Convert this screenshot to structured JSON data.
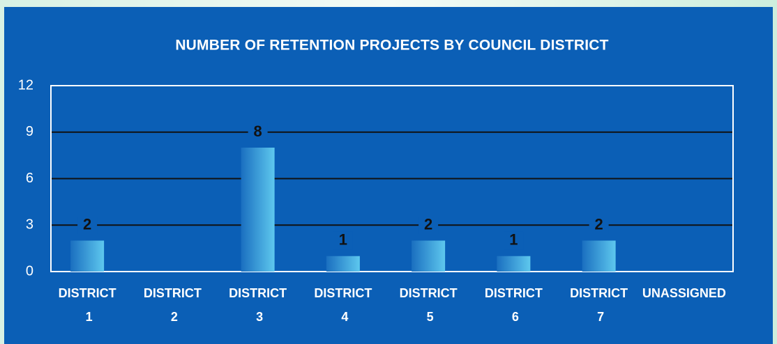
{
  "chart_data": {
    "type": "bar",
    "title": "NUMBER OF RETENTION PROJECTS BY COUNCIL DISTRICT",
    "categories": [
      "DISTRICT 1",
      "DISTRICT 2",
      "DISTRICT 3",
      "DISTRICT 4",
      "DISTRICT 5",
      "DISTRICT 6",
      "DISTRICT 7",
      "UNASSIGNED"
    ],
    "values": [
      2,
      0,
      8,
      1,
      2,
      1,
      2,
      0
    ],
    "color": "#1a6fc0",
    "ylim": [
      0,
      12
    ],
    "yticks": [
      0,
      3,
      6,
      9,
      12
    ],
    "grid": true
  }
}
